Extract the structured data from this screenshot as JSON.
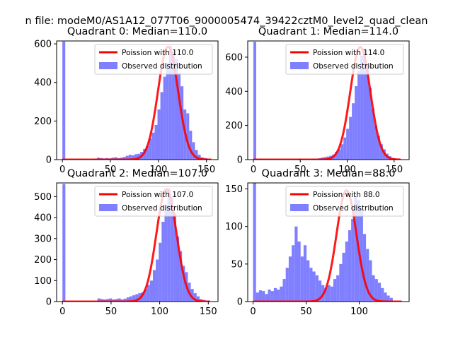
{
  "figure": {
    "suptitle": "n file: modeM0/AS1A12_077T06_9000005474_39422cztM0_level2_quad_clean"
  },
  "colors": {
    "hist_fill": "#7f7fff",
    "poisson_line": "#ff0000",
    "text": "#000000"
  },
  "chart_data": [
    {
      "type": "bar",
      "title": "Quadrant 0: Median=110.0",
      "xlabel": "",
      "ylabel": "",
      "xlim": [
        -6,
        162
      ],
      "ylim": [
        0,
        615
      ],
      "xticks": [
        0,
        50,
        100,
        150
      ],
      "yticks": [
        0,
        200,
        400,
        600
      ],
      "legend": {
        "placement": "upper right",
        "entries": [
          "Poission with 110.0",
          "Observed distribution"
        ]
      },
      "series": [
        {
          "name": "Observed distribution",
          "kind": "histogram",
          "bin_width": 3,
          "bins": [
            [
              0,
              612
            ],
            [
              33,
              5
            ],
            [
              36,
              10
            ],
            [
              39,
              8
            ],
            [
              42,
              6
            ],
            [
              45,
              8
            ],
            [
              48,
              6
            ],
            [
              51,
              10
            ],
            [
              54,
              12
            ],
            [
              57,
              8
            ],
            [
              60,
              10
            ],
            [
              63,
              14
            ],
            [
              66,
              20
            ],
            [
              69,
              25
            ],
            [
              72,
              22
            ],
            [
              75,
              28
            ],
            [
              78,
              30
            ],
            [
              81,
              40
            ],
            [
              84,
              55
            ],
            [
              87,
              70
            ],
            [
              90,
              110
            ],
            [
              93,
              140
            ],
            [
              96,
              180
            ],
            [
              99,
              260
            ],
            [
              102,
              350
            ],
            [
              105,
              430
            ],
            [
              108,
              500
            ],
            [
              111,
              590
            ],
            [
              114,
              560
            ],
            [
              117,
              520
            ],
            [
              120,
              450
            ],
            [
              123,
              380
            ],
            [
              126,
              260
            ],
            [
              129,
              240
            ],
            [
              132,
              150
            ],
            [
              135,
              90
            ],
            [
              138,
              50
            ],
            [
              141,
              25
            ],
            [
              144,
              12
            ],
            [
              147,
              8
            ],
            [
              150,
              5
            ]
          ]
        },
        {
          "name": "Poission with 110.0",
          "kind": "poisson_curve",
          "mean": 110.0,
          "peak": 585,
          "x_range": [
            0,
            155
          ]
        }
      ]
    },
    {
      "type": "bar",
      "title": "Quadrant 1: Median=114.0",
      "xlabel": "",
      "ylabel": "",
      "xlim": [
        -6,
        166
      ],
      "ylim": [
        0,
        695
      ],
      "xticks": [
        0,
        50,
        100,
        150
      ],
      "yticks": [
        0,
        200,
        400,
        600
      ],
      "legend": {
        "placement": "upper right",
        "entries": [
          "Poission with 114.0",
          "Observed distribution"
        ]
      },
      "series": [
        {
          "name": "Observed distribution",
          "kind": "histogram",
          "bin_width": 3,
          "bins": [
            [
              0,
              690
            ],
            [
              63,
              5
            ],
            [
              69,
              8
            ],
            [
              72,
              12
            ],
            [
              75,
              15
            ],
            [
              78,
              18
            ],
            [
              81,
              22
            ],
            [
              84,
              30
            ],
            [
              87,
              45
            ],
            [
              90,
              60
            ],
            [
              93,
              90
            ],
            [
              96,
              130
            ],
            [
              99,
              180
            ],
            [
              102,
              250
            ],
            [
              105,
              330
            ],
            [
              108,
              430
            ],
            [
              111,
              520
            ],
            [
              114,
              610
            ],
            [
              117,
              650
            ],
            [
              120,
              560
            ],
            [
              123,
              420
            ],
            [
              126,
              300
            ],
            [
              129,
              200
            ],
            [
              132,
              140
            ],
            [
              135,
              90
            ],
            [
              138,
              60
            ],
            [
              141,
              35
            ],
            [
              144,
              20
            ],
            [
              147,
              10
            ],
            [
              150,
              6
            ],
            [
              153,
              3
            ]
          ]
        },
        {
          "name": "Poission with 114.0",
          "kind": "poisson_curve",
          "mean": 114.0,
          "peak": 660,
          "x_range": [
            0,
            157
          ]
        }
      ]
    },
    {
      "type": "bar",
      "title": "Quadrant 2: Median=107.0",
      "xlabel": "",
      "ylabel": "",
      "xlim": [
        -6,
        160
      ],
      "ylim": [
        0,
        565
      ],
      "xticks": [
        0,
        50,
        100,
        150
      ],
      "yticks": [
        0,
        100,
        200,
        300,
        400,
        500
      ],
      "legend": {
        "placement": "upper right",
        "entries": [
          "Poission with 107.0",
          "Observed distribution"
        ]
      },
      "series": [
        {
          "name": "Observed distribution",
          "kind": "histogram",
          "bin_width": 3,
          "bins": [
            [
              0,
              560
            ],
            [
              36,
              15
            ],
            [
              39,
              12
            ],
            [
              42,
              10
            ],
            [
              45,
              12
            ],
            [
              48,
              15
            ],
            [
              51,
              10
            ],
            [
              54,
              12
            ],
            [
              57,
              15
            ],
            [
              60,
              10
            ],
            [
              63,
              14
            ],
            [
              66,
              20
            ],
            [
              69,
              25
            ],
            [
              72,
              30
            ],
            [
              75,
              35
            ],
            [
              78,
              40
            ],
            [
              81,
              45
            ],
            [
              84,
              60
            ],
            [
              87,
              80
            ],
            [
              90,
              100
            ],
            [
              93,
              150
            ],
            [
              96,
              200
            ],
            [
              99,
              280
            ],
            [
              102,
              380
            ],
            [
              105,
              460
            ],
            [
              108,
              540
            ],
            [
              111,
              500
            ],
            [
              114,
              420
            ],
            [
              117,
              310
            ],
            [
              120,
              240
            ],
            [
              123,
              170
            ],
            [
              126,
              140
            ],
            [
              129,
              90
            ],
            [
              132,
              60
            ],
            [
              135,
              40
            ],
            [
              138,
              25
            ],
            [
              141,
              12
            ],
            [
              144,
              8
            ],
            [
              147,
              4
            ]
          ]
        },
        {
          "name": "Poission with 107.0",
          "kind": "poisson_curve",
          "mean": 107.0,
          "peak": 535,
          "x_range": [
            0,
            152
          ]
        }
      ]
    },
    {
      "type": "bar",
      "title": "Quadrant 3: Median=88.0",
      "xlabel": "",
      "ylabel": "",
      "xlim": [
        -5,
        147
      ],
      "ylim": [
        0,
        158
      ],
      "xticks": [
        0,
        50,
        100
      ],
      "yticks": [
        0,
        50,
        100,
        150
      ],
      "legend": {
        "placement": "upper right",
        "entries": [
          "Poission with 88.0",
          "Observed distribution"
        ]
      },
      "series": [
        {
          "name": "Observed distribution",
          "kind": "histogram",
          "bin_width": 2.8,
          "bins": [
            [
              0,
              158
            ],
            [
              2.8,
              12
            ],
            [
              5.6,
              15
            ],
            [
              8.4,
              14
            ],
            [
              11.2,
              10
            ],
            [
              14,
              16
            ],
            [
              16.8,
              14
            ],
            [
              19.6,
              18
            ],
            [
              22.4,
              16
            ],
            [
              25.2,
              20
            ],
            [
              28,
              30
            ],
            [
              30.8,
              45
            ],
            [
              33.6,
              60
            ],
            [
              36.4,
              75
            ],
            [
              39.2,
              100
            ],
            [
              42,
              80
            ],
            [
              44.8,
              60
            ],
            [
              47.6,
              75
            ],
            [
              50.4,
              55
            ],
            [
              53.2,
              45
            ],
            [
              56,
              40
            ],
            [
              58.8,
              35
            ],
            [
              61.6,
              28
            ],
            [
              64.4,
              22
            ],
            [
              67.2,
              18
            ],
            [
              70,
              22
            ],
            [
              72.8,
              20
            ],
            [
              75.6,
              30
            ],
            [
              78.4,
              35
            ],
            [
              81.2,
              50
            ],
            [
              84,
              65
            ],
            [
              86.8,
              80
            ],
            [
              89.6,
              95
            ],
            [
              92.4,
              110
            ],
            [
              95.2,
              140
            ],
            [
              98,
              135
            ],
            [
              100.8,
              125
            ],
            [
              103.6,
              90
            ],
            [
              106.4,
              70
            ],
            [
              109.2,
              55
            ],
            [
              112,
              35
            ],
            [
              114.8,
              30
            ],
            [
              117.6,
              25
            ],
            [
              120.4,
              18
            ],
            [
              123.2,
              12
            ],
            [
              126,
              8
            ],
            [
              128.8,
              5
            ]
          ]
        },
        {
          "name": "Poission with 88.0",
          "kind": "poisson_curve",
          "mean": 88.0,
          "peak": 148,
          "x_range": [
            0,
            140
          ]
        }
      ]
    }
  ]
}
